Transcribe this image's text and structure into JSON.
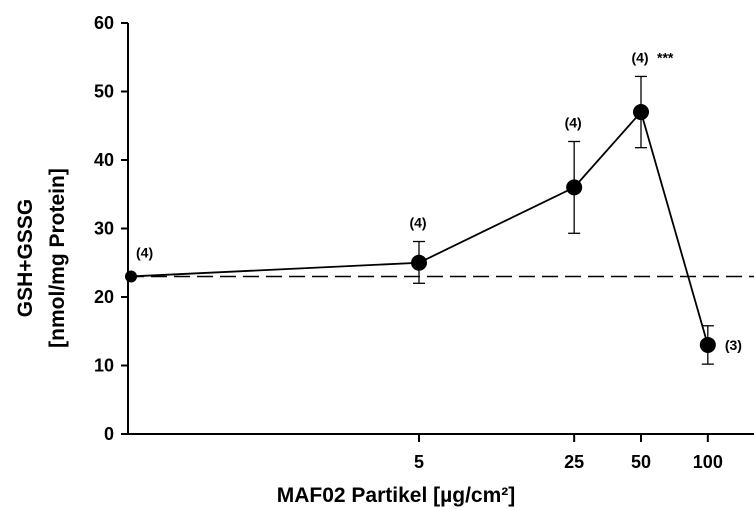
{
  "chart_data": {
    "type": "line",
    "title": "",
    "xlabel": "MAF02 Partikel [µg/cm²]",
    "ylabel_line1": "GSH+GSSG",
    "ylabel_line2": "[nmol/mg Protein]",
    "ylim": [
      0,
      60
    ],
    "yticks": [
      "0",
      "10",
      "20",
      "30",
      "40",
      "50",
      "60"
    ],
    "x_scale": "log",
    "xticks": [
      "5",
      "25",
      "50",
      "100"
    ],
    "series": [
      {
        "x": [
          0,
          5,
          25,
          50,
          100
        ],
        "y": [
          23,
          25,
          36,
          47,
          13
        ],
        "err_low": [
          23,
          22,
          29.3,
          41.8,
          10.2
        ],
        "err_high": [
          23,
          28.1,
          42.7,
          52.2,
          15.8
        ],
        "n_labels": [
          "(4)",
          "(4)",
          "(4)",
          "(4)",
          "(3)"
        ],
        "significance": [
          "",
          "",
          "",
          "***",
          ""
        ]
      }
    ],
    "control_reference_line": {
      "y": 23,
      "style": "dashed"
    }
  }
}
